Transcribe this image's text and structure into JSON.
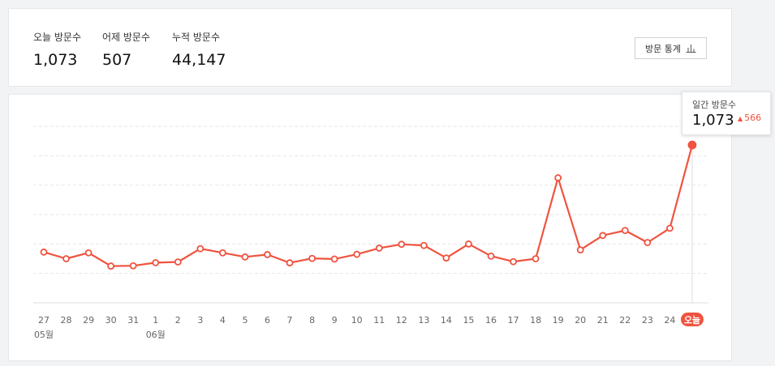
{
  "summary": {
    "today_label": "오늘 방문수",
    "today_value": "1,073",
    "yesterday_label": "어제 방문수",
    "yesterday_value": "507",
    "total_label": "누적 방문수",
    "total_value": "44,147",
    "stats_button_label": "방문 통계",
    "stats_button_icon": "bar-chart-icon"
  },
  "tooltip": {
    "label": "일간 방문수",
    "value": "1,073",
    "change": "566",
    "change_icon": "triangle-up-icon",
    "change_color": "#f0533f"
  },
  "colors": {
    "line": "#f0533f",
    "grid": "#e6e6e6"
  },
  "chart_data": {
    "type": "line",
    "categories": [
      "27",
      "28",
      "29",
      "30",
      "31",
      "1",
      "2",
      "3",
      "4",
      "5",
      "6",
      "7",
      "8",
      "9",
      "10",
      "11",
      "12",
      "13",
      "14",
      "15",
      "16",
      "17",
      "18",
      "19",
      "20",
      "21",
      "22",
      "23",
      "24",
      "오늘"
    ],
    "month_labels": [
      {
        "index": 0,
        "label": "05월"
      },
      {
        "index": 5,
        "label": "06월"
      }
    ],
    "highlighted_category_index": 29,
    "series": [
      {
        "values": [
          345,
          300,
          340,
          250,
          252,
          273,
          278,
          368,
          340,
          312,
          328,
          272,
          302,
          298,
          330,
          372,
          398,
          390,
          305,
          400,
          318,
          280,
          300,
          850,
          360,
          458,
          492,
          410,
          507,
          1073
        ]
      }
    ],
    "ylim": [
      0,
      1200
    ],
    "grid": true,
    "legend": "none"
  }
}
